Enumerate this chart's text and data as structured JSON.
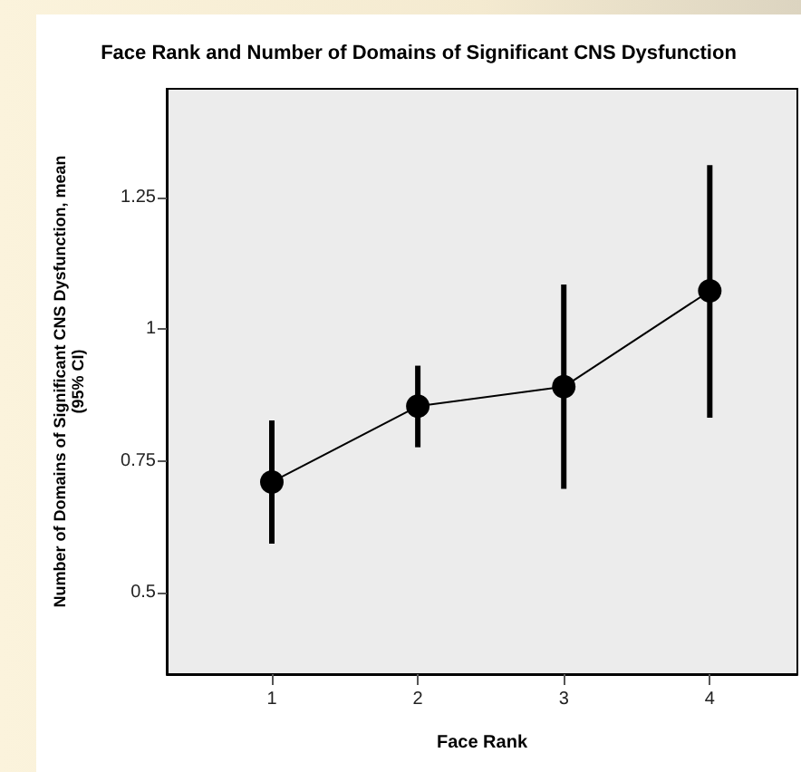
{
  "chart_data": {
    "type": "line",
    "title": "Face Rank and Number of Domains of Significant CNS Dysfunction",
    "xlabel": "Face Rank",
    "ylabel": "Number of Domains of Significant CNS Dysfunction, mean\n(95% CI)",
    "x": [
      1,
      2,
      3,
      4
    ],
    "series": [
      {
        "color": "#000000",
        "values": [
          0.71,
          0.854,
          0.891,
          1.073
        ],
        "errors": [
          [
            0.593,
            0.827
          ],
          [
            0.776,
            0.931
          ],
          [
            0.697,
            1.085
          ],
          [
            0.832,
            1.312
          ]
        ]
      }
    ],
    "xlim": [
      0.28,
      4.6
    ],
    "xticks": [
      1,
      2,
      3,
      4
    ],
    "ylim": [
      0.345,
      1.457
    ],
    "yticks": [
      0.5,
      0.75,
      1,
      1.25
    ],
    "grid": false,
    "marker": "circle",
    "line_style": "solid"
  }
}
